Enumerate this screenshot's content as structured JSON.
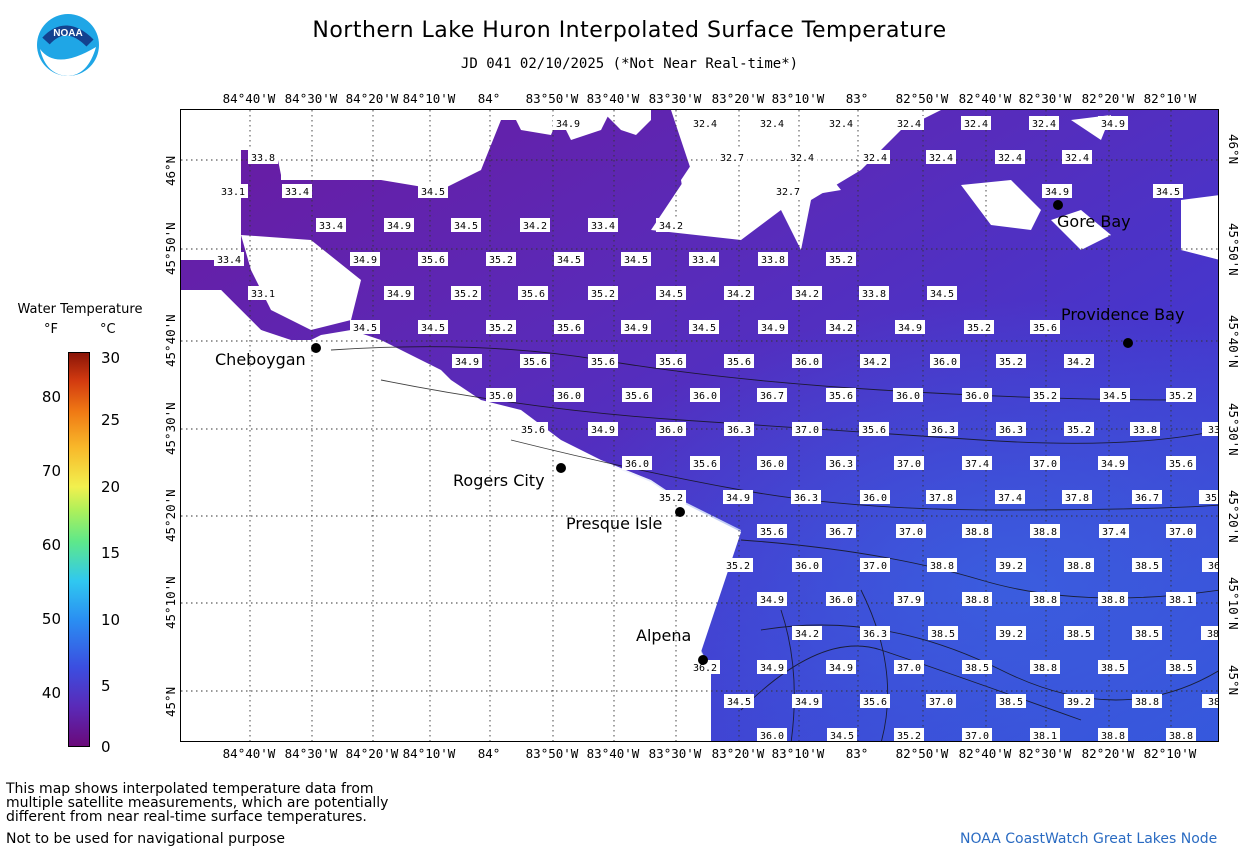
{
  "header": {
    "title": "Northern Lake Huron Interpolated Surface Temperature",
    "subtitle": "JD 041 02/10/2025 (*Not Near Real-time*)",
    "logo_text": "NOAA"
  },
  "legend": {
    "title": "Water Temperature",
    "unit_f": "°F",
    "unit_c": "°C",
    "ticks_f": [
      "80",
      "70",
      "60",
      "50",
      "40"
    ],
    "ticks_c": [
      "30",
      "25",
      "20",
      "15",
      "10",
      "5",
      "0"
    ]
  },
  "axes": {
    "lon": [
      "84°40'W",
      "84°30'W",
      "84°20'W",
      "84°10'W",
      "84°",
      "83°50'W",
      "83°40'W",
      "83°30'W",
      "83°20'W",
      "83°10'W",
      "83°",
      "82°50'W",
      "82°40'W",
      "82°30'W",
      "82°20'W",
      "82°10'W"
    ],
    "lat": [
      "46°N",
      "45°50'N",
      "45°40'N",
      "45°30'N",
      "45°20'N",
      "45°10'N",
      "45°N"
    ]
  },
  "places": {
    "cheboygan": "Cheboygan",
    "rogers_city": "Rogers City",
    "presque_isle": "Presque Isle",
    "alpena": "Alpena",
    "gore_bay": "Gore Bay",
    "providence_bay": "Providence Bay"
  },
  "footer": {
    "disclaimer": "This map shows interpolated temperature data from\nmultiple satellite measurements, which are potentially\ndifferent from near real-time surface temperatures.",
    "navigation": "Not to be used for navigational purpose",
    "credit": "NOAA CoastWatch Great Lakes Node"
  },
  "colors": {
    "water_cold": "#6a1a9a",
    "water_mid": "#4a36c8",
    "water_warm": "#3a55dd",
    "label_bg": "#ffffff"
  },
  "temperature_labels": [
    [
      "34.9",
      0,
      0
    ],
    [
      "32.4",
      0,
      0
    ],
    [
      "32.4",
      0,
      0
    ],
    [
      "32.4",
      0,
      0
    ],
    [
      "32.4",
      0,
      0
    ],
    [
      "32.4",
      0,
      0
    ],
    [
      "32.4",
      0,
      0
    ],
    [
      "34.9",
      0,
      0
    ],
    [
      "33.8",
      0,
      0
    ],
    [
      "32.7",
      0,
      0
    ],
    [
      "32.4",
      0,
      0
    ],
    [
      "32.4",
      0,
      0
    ],
    [
      "32.4",
      0,
      0
    ],
    [
      "32.4",
      0,
      0
    ],
    [
      "32.4",
      0,
      0
    ],
    [
      "33.1",
      0,
      0
    ],
    [
      "33.4",
      0,
      0
    ],
    [
      "34.5",
      0,
      0
    ],
    [
      "32.7",
      0,
      0
    ],
    [
      "34.9",
      0,
      0
    ],
    [
      "34.5",
      0,
      0
    ],
    [
      "33.4",
      0,
      0
    ],
    [
      "34.9",
      0,
      0
    ],
    [
      "34.5",
      0,
      0
    ],
    [
      "34.2",
      0,
      0
    ],
    [
      "33.4",
      0,
      0
    ],
    [
      "34.2",
      0,
      0
    ],
    [
      "33.4",
      0,
      0
    ],
    [
      "34.9",
      0,
      0
    ],
    [
      "35.6",
      0,
      0
    ],
    [
      "35.2",
      0,
      0
    ],
    [
      "34.5",
      0,
      0
    ],
    [
      "34.5",
      0,
      0
    ],
    [
      "33.4",
      0,
      0
    ],
    [
      "33.8",
      0,
      0
    ],
    [
      "35.2",
      0,
      0
    ],
    [
      "33.1",
      0,
      0
    ],
    [
      "34.9",
      0,
      0
    ],
    [
      "35.2",
      0,
      0
    ],
    [
      "35.6",
      0,
      0
    ],
    [
      "35.2",
      0,
      0
    ],
    [
      "34.5",
      0,
      0
    ],
    [
      "34.2",
      0,
      0
    ],
    [
      "34.2",
      0,
      0
    ],
    [
      "33.8",
      0,
      0
    ],
    [
      "34.5",
      0,
      0
    ],
    [
      "34.5",
      0,
      0
    ],
    [
      "34.5",
      0,
      0
    ],
    [
      "35.2",
      0,
      0
    ],
    [
      "35.6",
      0,
      0
    ],
    [
      "34.9",
      0,
      0
    ],
    [
      "34.5",
      0,
      0
    ],
    [
      "34.9",
      0,
      0
    ],
    [
      "34.2",
      0,
      0
    ],
    [
      "34.9",
      0,
      0
    ],
    [
      "35.2",
      0,
      0
    ],
    [
      "35.6",
      0,
      0
    ],
    [
      "34.9",
      0,
      0
    ],
    [
      "35.6",
      0,
      0
    ],
    [
      "35.6",
      0,
      0
    ],
    [
      "35.6",
      0,
      0
    ],
    [
      "35.6",
      0,
      0
    ],
    [
      "36.0",
      0,
      0
    ],
    [
      "34.2",
      0,
      0
    ],
    [
      "36.0",
      0,
      0
    ],
    [
      "35.2",
      0,
      0
    ],
    [
      "34.2",
      0,
      0
    ],
    [
      "35.0",
      0,
      0
    ],
    [
      "36.0",
      0,
      0
    ],
    [
      "35.6",
      0,
      0
    ],
    [
      "36.0",
      0,
      0
    ],
    [
      "36.7",
      0,
      0
    ],
    [
      "35.6",
      0,
      0
    ],
    [
      "36.0",
      0,
      0
    ],
    [
      "36.0",
      0,
      0
    ],
    [
      "35.2",
      0,
      0
    ],
    [
      "34.5",
      0,
      0
    ],
    [
      "35.2",
      0,
      0
    ],
    [
      "35.6",
      0,
      0
    ],
    [
      "34.9",
      0,
      0
    ],
    [
      "36.0",
      0,
      0
    ],
    [
      "36.3",
      0,
      0
    ],
    [
      "37.0",
      0,
      0
    ],
    [
      "35.6",
      0,
      0
    ],
    [
      "36.3",
      0,
      0
    ],
    [
      "36.3",
      0,
      0
    ],
    [
      "35.2",
      0,
      0
    ],
    [
      "33.8",
      0,
      0
    ],
    [
      "33.",
      0,
      0
    ],
    [
      "36.0",
      0,
      0
    ],
    [
      "35.6",
      0,
      0
    ],
    [
      "36.0",
      0,
      0
    ],
    [
      "36.3",
      0,
      0
    ],
    [
      "37.0",
      0,
      0
    ],
    [
      "37.4",
      0,
      0
    ],
    [
      "37.0",
      0,
      0
    ],
    [
      "34.9",
      0,
      0
    ],
    [
      "35.6",
      0,
      0
    ],
    [
      "35.2",
      0,
      0
    ],
    [
      "34.9",
      0,
      0
    ],
    [
      "36.3",
      0,
      0
    ],
    [
      "36.0",
      0,
      0
    ],
    [
      "37.8",
      0,
      0
    ],
    [
      "37.4",
      0,
      0
    ],
    [
      "37.8",
      0,
      0
    ],
    [
      "36.7",
      0,
      0
    ],
    [
      "35.",
      0,
      0
    ],
    [
      "35.6",
      0,
      0
    ],
    [
      "36.7",
      0,
      0
    ],
    [
      "37.0",
      0,
      0
    ],
    [
      "38.8",
      0,
      0
    ],
    [
      "38.8",
      0,
      0
    ],
    [
      "37.4",
      0,
      0
    ],
    [
      "37.0",
      0,
      0
    ],
    [
      "35.2",
      0,
      0
    ],
    [
      "36.0",
      0,
      0
    ],
    [
      "37.0",
      0,
      0
    ],
    [
      "38.8",
      0,
      0
    ],
    [
      "39.2",
      0,
      0
    ],
    [
      "38.8",
      0,
      0
    ],
    [
      "38.5",
      0,
      0
    ],
    [
      "36.",
      0,
      0
    ],
    [
      "34.9",
      0,
      0
    ],
    [
      "36.0",
      0,
      0
    ],
    [
      "37.9",
      0,
      0
    ],
    [
      "38.8",
      0,
      0
    ],
    [
      "38.8",
      0,
      0
    ],
    [
      "38.8",
      0,
      0
    ],
    [
      "38.1",
      0,
      0
    ],
    [
      "34.2",
      0,
      0
    ],
    [
      "36.3",
      0,
      0
    ],
    [
      "38.5",
      0,
      0
    ],
    [
      "39.2",
      0,
      0
    ],
    [
      "38.5",
      0,
      0
    ],
    [
      "38.5",
      0,
      0
    ],
    [
      "38.",
      0,
      0
    ],
    [
      "36.2",
      0,
      0
    ],
    [
      "34.9",
      0,
      0
    ],
    [
      "34.9",
      0,
      0
    ],
    [
      "37.0",
      0,
      0
    ],
    [
      "38.5",
      0,
      0
    ],
    [
      "38.8",
      0,
      0
    ],
    [
      "38.5",
      0,
      0
    ],
    [
      "38.5",
      0,
      0
    ],
    [
      "34.5",
      0,
      0
    ],
    [
      "34.9",
      0,
      0
    ],
    [
      "35.6",
      0,
      0
    ],
    [
      "37.0",
      0,
      0
    ],
    [
      "38.5",
      0,
      0
    ],
    [
      "39.2",
      0,
      0
    ],
    [
      "38.8",
      0,
      0
    ],
    [
      "38.",
      0,
      0
    ],
    [
      "36.0",
      0,
      0
    ],
    [
      "34.5",
      0,
      0
    ],
    [
      "35.2",
      0,
      0
    ],
    [
      "37.0",
      0,
      0
    ],
    [
      "38.1",
      0,
      0
    ],
    [
      "38.8",
      0,
      0
    ],
    [
      "38.8",
      0,
      0
    ]
  ]
}
